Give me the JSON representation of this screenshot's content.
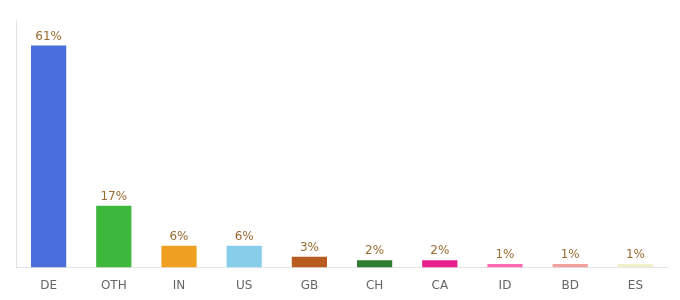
{
  "chart_data": {
    "type": "bar",
    "categories": [
      "DE",
      "OTH",
      "IN",
      "US",
      "GB",
      "CH",
      "CA",
      "ID",
      "BD",
      "ES"
    ],
    "values": [
      61,
      17,
      6,
      6,
      3,
      2,
      2,
      1,
      1,
      1
    ],
    "value_labels": [
      "61%",
      "17%",
      "6%",
      "6%",
      "3%",
      "2%",
      "2%",
      "1%",
      "1%",
      "1%"
    ],
    "colors": [
      "#4a6fdc",
      "#3db83d",
      "#f0a020",
      "#87ceeb",
      "#b85c20",
      "#2e7d32",
      "#e91e8c",
      "#ff69b4",
      "#f4a0a0",
      "#f0efcc"
    ],
    "ylim": [
      0,
      68
    ],
    "grid": false,
    "data_labels": true,
    "tick_labels": "x"
  }
}
